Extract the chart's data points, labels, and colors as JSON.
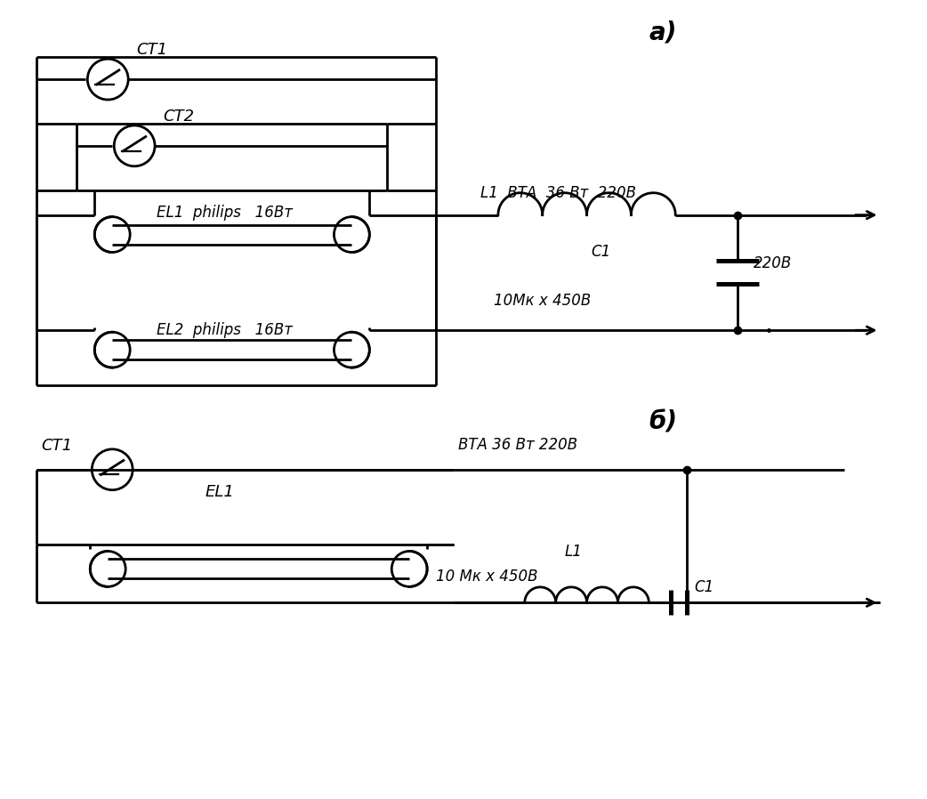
{
  "bg_color": "#ffffff",
  "line_color": "#000000",
  "line_width": 2.0,
  "fig_width": 10.42,
  "fig_height": 8.98,
  "label_a": "а)",
  "label_b": "б)",
  "ct1_label_a": "СТ1",
  "ct2_label_a": "СТ2",
  "el1_label_a": "EL1  philips   16Вт",
  "el2_label_a": "EL2  philips   16Вт",
  "l1_label_a": "L1  ВТА  36 Вт  220В",
  "c1_label_a": "С1",
  "cap_label_a": "220В",
  "cap_val_a": "10Мк х 450В",
  "ct1_label_b": "СТ1",
  "el1_label_b": "EL1",
  "l1_label_b": "L1",
  "bta_label_b": "ВТА 36 Вт 220В",
  "cap_val_b": "10 Мк х 450В",
  "c1_label_b": "С1"
}
